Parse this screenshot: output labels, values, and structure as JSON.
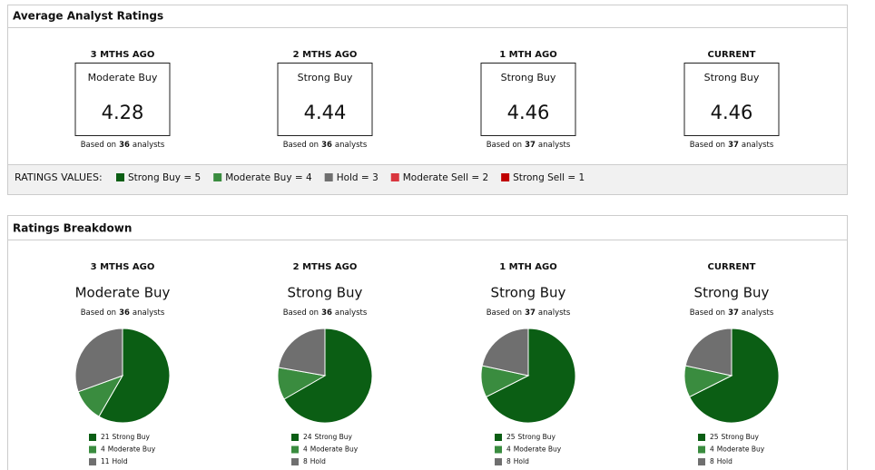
{
  "avg_title": "Average Analyst Ratings",
  "breakdown_title": "Ratings Breakdown",
  "based_on": "Based on",
  "analysts_word": "analysts",
  "legend_label": "RATINGS VALUES:",
  "legend_items": [
    {
      "text": "Strong Buy = 5",
      "color": "#0b5e14"
    },
    {
      "text": "Moderate Buy = 4",
      "color": "#3a8c3f"
    },
    {
      "text": "Hold = 3",
      "color": "#6f6f6f"
    },
    {
      "text": "Moderate Sell = 2",
      "color": "#d9363e"
    },
    {
      "text": "Strong Sell = 1",
      "color": "#c00000"
    }
  ],
  "categories": [
    "Strong Buy",
    "Moderate Buy",
    "Hold"
  ],
  "colors": [
    "#0b5e14",
    "#3a8c3f",
    "#6f6f6f"
  ],
  "periods": [
    {
      "label": "3 MTHS AGO",
      "rating": "Moderate Buy",
      "score": 4.28,
      "analysts": 36,
      "counts": [
        21,
        4,
        11
      ]
    },
    {
      "label": "2 MTHS AGO",
      "rating": "Strong Buy",
      "score": 4.44,
      "analysts": 36,
      "counts": [
        24,
        4,
        8
      ]
    },
    {
      "label": "1 MTH AGO",
      "rating": "Strong Buy",
      "score": 4.46,
      "analysts": 37,
      "counts": [
        25,
        4,
        8
      ]
    },
    {
      "label": "CURRENT",
      "rating": "Strong Buy",
      "score": 4.46,
      "analysts": 37,
      "counts": [
        25,
        4,
        8
      ]
    }
  ]
}
